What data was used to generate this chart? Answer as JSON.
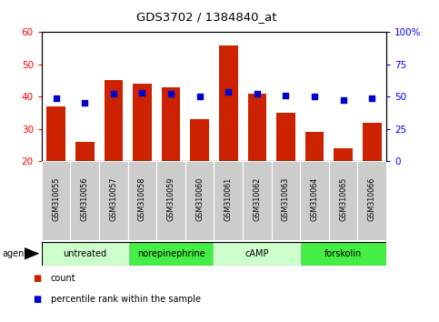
{
  "title": "GDS3702 / 1384840_at",
  "samples": [
    "GSM310055",
    "GSM310056",
    "GSM310057",
    "GSM310058",
    "GSM310059",
    "GSM310060",
    "GSM310061",
    "GSM310062",
    "GSM310063",
    "GSM310064",
    "GSM310065",
    "GSM310066"
  ],
  "counts": [
    37,
    26,
    45,
    44,
    43,
    33,
    56,
    41,
    35,
    29,
    24,
    32
  ],
  "percentile_ranks_pct": [
    49,
    45,
    52,
    53,
    52,
    50,
    54,
    52,
    51,
    50,
    47,
    49
  ],
  "ylim_left": [
    20,
    60
  ],
  "ylim_right": [
    0,
    100
  ],
  "yticks_left": [
    20,
    30,
    40,
    50,
    60
  ],
  "yticks_right": [
    0,
    25,
    50,
    75,
    100
  ],
  "ytick_labels_right": [
    "0",
    "25",
    "50",
    "75",
    "100%"
  ],
  "bar_color": "#cc2200",
  "dot_color": "#0000cc",
  "agent_groups": [
    {
      "label": "untreated",
      "start": 0,
      "end": 3,
      "color": "#ccffcc"
    },
    {
      "label": "norepinephrine",
      "start": 3,
      "end": 6,
      "color": "#44ee44"
    },
    {
      "label": "cAMP",
      "start": 6,
      "end": 9,
      "color": "#ccffcc"
    },
    {
      "label": "forskolin",
      "start": 9,
      "end": 12,
      "color": "#44ee44"
    }
  ],
  "legend_count_label": "count",
  "legend_percentile_label": "percentile rank within the sample",
  "agent_label": "agent",
  "right_axis_suffix": "%"
}
